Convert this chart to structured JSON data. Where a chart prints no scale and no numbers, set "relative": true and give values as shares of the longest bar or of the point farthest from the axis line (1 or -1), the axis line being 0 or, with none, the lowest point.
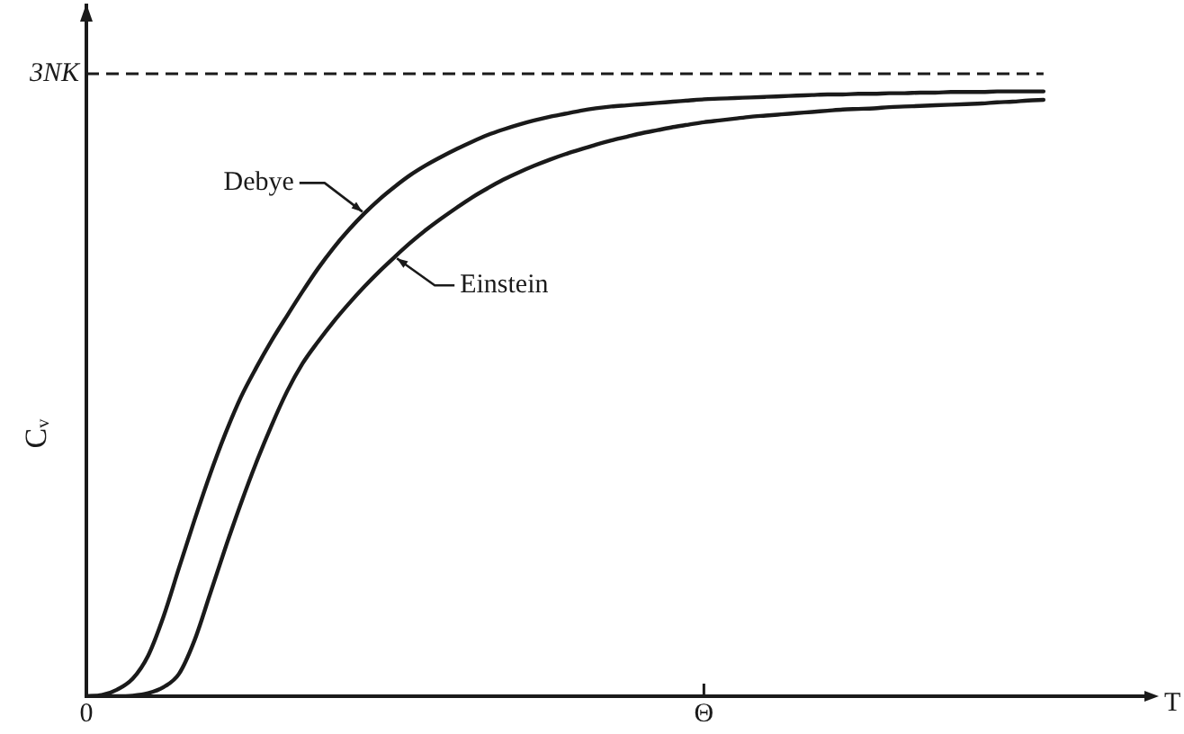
{
  "chart_data": {
    "type": "line",
    "relative": true,
    "xlabel": "T",
    "ylabel": "Cᵥ",
    "categories": [
      "0",
      null,
      null,
      null,
      null,
      null,
      null,
      null,
      null,
      null,
      null,
      null,
      null,
      null,
      null,
      null,
      null,
      null,
      null,
      null,
      null,
      null,
      null,
      null,
      null,
      null,
      null,
      null,
      null,
      null,
      null,
      null,
      null,
      null,
      null,
      null,
      null,
      null,
      null,
      null,
      "Θ",
      null,
      null,
      null,
      null,
      null,
      null,
      null,
      null,
      null,
      null,
      null,
      null,
      null,
      null,
      null,
      null,
      null,
      null,
      null,
      null,
      null,
      null,
      null,
      null,
      null,
      null,
      null,
      null,
      null
    ],
    "series": [
      {
        "name": "Debye",
        "color": "#1a1a1a",
        "values": [
          0,
          0.002,
          0.011,
          0.029,
          0.067,
          0.132,
          0.212,
          0.291,
          0.366,
          0.434,
          0.494,
          0.543,
          0.588,
          0.629,
          0.669,
          0.707,
          0.741,
          0.771,
          0.798,
          0.822,
          0.843,
          0.862,
          0.878,
          0.892,
          0.905,
          0.917,
          0.928,
          0.937,
          0.945,
          0.952,
          0.958,
          0.963,
          0.968,
          0.972,
          0.975,
          0.977,
          0.979,
          0.981,
          0.983,
          0.985,
          0.987,
          0.988,
          0.989,
          0.99,
          0.991,
          0.992,
          0.993,
          0.994,
          0.995,
          0.995,
          0.996,
          0.996,
          0.997,
          0.997,
          0.998,
          0.998,
          0.999,
          0.999,
          0.999,
          1,
          1,
          1,
          1,
          null,
          null,
          null,
          null,
          null,
          null,
          null
        ]
      },
      {
        "name": "Einstein",
        "color": "#1a1a1a",
        "values": [
          0,
          0,
          0,
          0.001,
          0.005,
          0.015,
          0.037,
          0.092,
          0.168,
          0.245,
          0.318,
          0.386,
          0.448,
          0.504,
          0.55,
          0.586,
          0.619,
          0.649,
          0.677,
          0.703,
          0.727,
          0.75,
          0.771,
          0.79,
          0.808,
          0.825,
          0.84,
          0.854,
          0.866,
          0.877,
          0.887,
          0.896,
          0.904,
          0.912,
          0.919,
          0.925,
          0.931,
          0.936,
          0.941,
          0.945,
          0.949,
          0.952,
          0.955,
          0.958,
          0.96,
          0.962,
          0.964,
          0.966,
          0.968,
          0.97,
          0.971,
          0.972,
          0.974,
          0.975,
          0.976,
          0.977,
          0.978,
          0.979,
          0.98,
          0.982,
          0.983,
          0.985,
          0.986,
          null,
          null,
          null,
          null,
          null,
          null,
          null
        ]
      }
    ],
    "ref_lines": [
      {
        "axis": "y",
        "value": 1.029,
        "label": "3NK",
        "line_style": "dashed",
        "color": "#1a1a1a"
      }
    ],
    "marker": "none"
  }
}
